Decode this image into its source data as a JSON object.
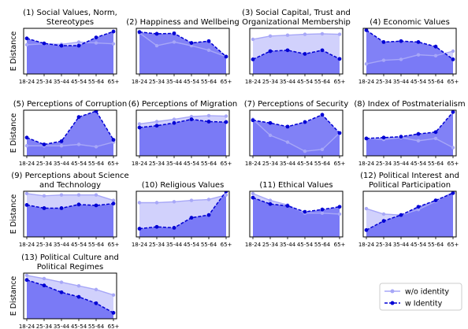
{
  "figure": {
    "ylabel": "E Distance",
    "legend": {
      "placement": "bottom-right",
      "entries": [
        {
          "label": "w/o identity",
          "style": "light-solid"
        },
        {
          "label": "w Identity",
          "style": "dark-dashed"
        }
      ]
    },
    "colors": {
      "light_line": "#a7a7f7",
      "light_fill": "#c9c9fb",
      "dark_line": "#0000d4",
      "dark_fill": "#6b6bf5",
      "frame": "#000000"
    }
  },
  "chart_data": [
    {
      "type": "area",
      "title_lines": [
        "(1) Social Values, Norm,",
        "Stereotypes"
      ],
      "xlabel": "",
      "ylabel": "E Distance",
      "categories": [
        "18-24",
        "25-34",
        "35-44",
        "45-54",
        "55-64",
        "65+"
      ],
      "ylim": [
        0,
        1
      ],
      "grid": false,
      "series": [
        {
          "name": "w/o identity",
          "values": [
            0.64,
            0.66,
            0.65,
            0.7,
            0.68,
            0.66
          ]
        },
        {
          "name": "w Identity",
          "values": [
            0.78,
            0.67,
            0.62,
            0.62,
            0.8,
            0.93
          ]
        }
      ]
    },
    {
      "type": "area",
      "title_lines": [
        "(2) Happiness and Wellbeing"
      ],
      "xlabel": "",
      "ylabel": "",
      "categories": [
        "18-24",
        "25-34",
        "35-44",
        "45-54",
        "55-64",
        "65+"
      ],
      "ylim": [
        0,
        1
      ],
      "grid": false,
      "series": [
        {
          "name": "w/o identity",
          "values": [
            0.9,
            0.62,
            0.7,
            0.62,
            0.52,
            0.38
          ]
        },
        {
          "name": "w Identity",
          "values": [
            0.92,
            0.88,
            0.89,
            0.68,
            0.72,
            0.38
          ]
        }
      ]
    },
    {
      "type": "area",
      "title_lines": [
        "(3) Social Capital, Trust and",
        "Organizational Membership"
      ],
      "xlabel": "",
      "ylabel": "",
      "categories": [
        "18-24",
        "25-34",
        "35-44",
        "45-54",
        "55-64",
        "65+"
      ],
      "ylim": [
        0,
        1
      ],
      "grid": false,
      "series": [
        {
          "name": "w/o identity",
          "values": [
            0.76,
            0.83,
            0.85,
            0.87,
            0.88,
            0.87
          ]
        },
        {
          "name": "w Identity",
          "values": [
            0.32,
            0.5,
            0.52,
            0.44,
            0.52,
            0.33
          ]
        }
      ]
    },
    {
      "type": "area",
      "title_lines": [
        "(4) Economic Values"
      ],
      "xlabel": "",
      "ylabel": "",
      "categories": [
        "18-24",
        "25-34",
        "35-44",
        "45-54",
        "55-64",
        "65+"
      ],
      "ylim": [
        0,
        1
      ],
      "grid": false,
      "series": [
        {
          "name": "w/o identity",
          "values": [
            0.22,
            0.3,
            0.32,
            0.42,
            0.4,
            0.5
          ]
        },
        {
          "name": "w Identity",
          "values": [
            0.96,
            0.7,
            0.72,
            0.7,
            0.6,
            0.32
          ]
        }
      ]
    },
    {
      "type": "area",
      "title_lines": [
        "(5) Perceptions of Corruption"
      ],
      "xlabel": "",
      "ylabel": "E Distance",
      "categories": [
        "18-24",
        "25-34",
        "35-44",
        "45-54",
        "55-64",
        "65+"
      ],
      "ylim": [
        0,
        1
      ],
      "grid": false,
      "series": [
        {
          "name": "w/o identity",
          "values": [
            0.22,
            0.22,
            0.22,
            0.25,
            0.2,
            0.3
          ]
        },
        {
          "name": "w Identity",
          "values": [
            0.4,
            0.25,
            0.32,
            0.85,
            0.98,
            0.35
          ]
        }
      ]
    },
    {
      "type": "area",
      "title_lines": [
        "(6) Perceptions of Migration"
      ],
      "xlabel": "",
      "ylabel": "",
      "categories": [
        "18-24",
        "25-34",
        "35-44",
        "45-54",
        "55-64",
        "65+"
      ],
      "ylim": [
        0,
        1
      ],
      "grid": false,
      "series": [
        {
          "name": "w/o identity",
          "values": [
            0.7,
            0.75,
            0.8,
            0.86,
            0.88,
            0.87
          ]
        },
        {
          "name": "w Identity",
          "values": [
            0.62,
            0.66,
            0.72,
            0.8,
            0.75,
            0.74
          ]
        }
      ]
    },
    {
      "type": "area",
      "title_lines": [
        "(7) Perceptions of Security"
      ],
      "xlabel": "",
      "ylabel": "",
      "categories": [
        "18-24",
        "25-34",
        "35-44",
        "45-54",
        "55-64",
        "65+"
      ],
      "ylim": [
        0,
        1
      ],
      "grid": false,
      "series": [
        {
          "name": "w/o identity",
          "values": [
            0.8,
            0.45,
            0.3,
            0.1,
            0.14,
            0.5
          ]
        },
        {
          "name": "w Identity",
          "values": [
            0.78,
            0.72,
            0.64,
            0.74,
            0.9,
            0.5
          ]
        }
      ]
    },
    {
      "type": "area",
      "title_lines": [
        "(8) Index of Postmaterialism"
      ],
      "xlabel": "",
      "ylabel": "",
      "categories": [
        "18-24",
        "25-34",
        "35-44",
        "45-54",
        "55-64",
        "65+"
      ],
      "ylim": [
        0,
        1
      ],
      "grid": false,
      "series": [
        {
          "name": "w/o identity",
          "values": [
            0.38,
            0.36,
            0.4,
            0.33,
            0.38,
            0.18
          ]
        },
        {
          "name": "w Identity",
          "values": [
            0.38,
            0.4,
            0.42,
            0.48,
            0.52,
            0.96
          ]
        }
      ]
    },
    {
      "type": "area",
      "title_lines": [
        "(9) Perceptions about Science",
        "and Technology"
      ],
      "xlabel": "",
      "ylabel": "E Distance",
      "categories": [
        "18-24",
        "25-34",
        "35-44",
        "45-54",
        "55-64",
        "65+"
      ],
      "ylim": [
        0,
        1
      ],
      "grid": false,
      "series": [
        {
          "name": "w/o identity",
          "values": [
            0.95,
            0.9,
            0.92,
            0.92,
            0.92,
            0.8
          ]
        },
        {
          "name": "w Identity",
          "values": [
            0.7,
            0.63,
            0.63,
            0.71,
            0.69,
            0.73
          ]
        }
      ]
    },
    {
      "type": "area",
      "title_lines": [
        "(10) Religious Values"
      ],
      "xlabel": "",
      "ylabel": "",
      "categories": [
        "18-24",
        "25-34",
        "35-44",
        "45-54",
        "55-64",
        "65+"
      ],
      "ylim": [
        0,
        1
      ],
      "grid": false,
      "series": [
        {
          "name": "w/o identity",
          "values": [
            0.75,
            0.75,
            0.77,
            0.8,
            0.82,
            0.92
          ]
        },
        {
          "name": "w Identity",
          "values": [
            0.18,
            0.22,
            0.2,
            0.42,
            0.48,
            1.0
          ]
        }
      ]
    },
    {
      "type": "area",
      "title_lines": [
        "(11) Ethical Values"
      ],
      "xlabel": "",
      "ylabel": "",
      "categories": [
        "18-24",
        "25-34",
        "35-44",
        "45-54",
        "55-64",
        "65+"
      ],
      "ylim": [
        0,
        1
      ],
      "grid": false,
      "series": [
        {
          "name": "w/o identity",
          "values": [
            0.95,
            0.8,
            0.7,
            0.52,
            0.52,
            0.5
          ]
        },
        {
          "name": "w Identity",
          "values": [
            0.86,
            0.72,
            0.68,
            0.55,
            0.6,
            0.66
          ]
        }
      ]
    },
    {
      "type": "area",
      "title_lines": [
        "(12) Political Interest and",
        "Political Participation"
      ],
      "xlabel": "",
      "ylabel": "",
      "categories": [
        "18-24",
        "25-34",
        "35-44",
        "45-54",
        "55-64",
        "65+"
      ],
      "ylim": [
        0,
        1
      ],
      "grid": false,
      "series": [
        {
          "name": "w/o identity",
          "values": [
            0.62,
            0.5,
            0.48,
            0.6,
            0.78,
            0.98
          ]
        },
        {
          "name": "w Identity",
          "values": [
            0.15,
            0.35,
            0.48,
            0.66,
            0.8,
            0.96
          ]
        }
      ]
    },
    {
      "type": "area",
      "title_lines": [
        "(13) Political Culture and",
        "Political Regimes"
      ],
      "xlabel": "",
      "ylabel": "E Distance",
      "categories": [
        "18-24",
        "25-34",
        "35-44",
        "45-54",
        "55-64",
        "65+"
      ],
      "ylim": [
        0,
        1
      ],
      "grid": false,
      "series": [
        {
          "name": "w/o identity",
          "values": [
            0.95,
            0.88,
            0.8,
            0.72,
            0.64,
            0.52
          ]
        },
        {
          "name": "w Identity",
          "values": [
            0.85,
            0.73,
            0.58,
            0.48,
            0.34,
            0.13
          ]
        }
      ]
    }
  ]
}
